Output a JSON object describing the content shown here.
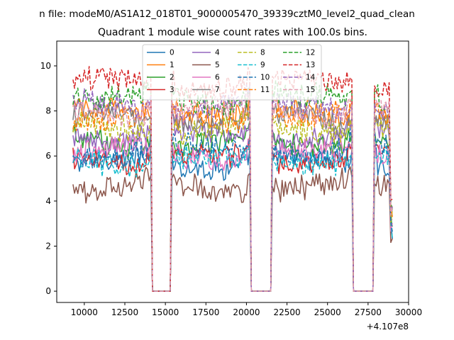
{
  "chart_data": {
    "type": "line",
    "suptitle": "n file: modeM0/AS1A12_018T01_9000005470_39339cztM0_level2_quad_clean",
    "title": "Quadrant 1 module wise count rates with 100.0s bins.",
    "xlabel": "",
    "ylabel": "",
    "x_offset_label": "+4.107e8",
    "xlim": [
      8300,
      30000
    ],
    "ylim": [
      -0.5,
      11.1
    ],
    "xticks": [
      10000,
      12500,
      15000,
      17500,
      20000,
      22500,
      25000,
      27500,
      30000
    ],
    "xtick_labels": [
      "10000",
      "12500",
      "15000",
      "17500",
      "20000",
      "22500",
      "25000",
      "27500",
      "30000"
    ],
    "yticks": [
      0,
      2,
      4,
      6,
      8,
      10
    ],
    "ytick_labels": [
      "0",
      "2",
      "4",
      "6",
      "8",
      "10"
    ],
    "x_start": 9300,
    "x_end": 29000,
    "bin": 100,
    "gaps": [
      [
        14200,
        15400
      ],
      [
        20300,
        21600
      ],
      [
        26600,
        27900
      ]
    ],
    "legend_position": "upper-center",
    "series": [
      {
        "name": "0",
        "color": "#1f77b4",
        "dash": "solid",
        "level": 5.7
      },
      {
        "name": "1",
        "color": "#ff7f0e",
        "dash": "solid",
        "level": 7.9
      },
      {
        "name": "2",
        "color": "#2ca02c",
        "dash": "solid",
        "level": 6.6
      },
      {
        "name": "3",
        "color": "#d62728",
        "dash": "solid",
        "level": 5.9
      },
      {
        "name": "4",
        "color": "#9467bd",
        "dash": "solid",
        "level": 6.9
      },
      {
        "name": "5",
        "color": "#8c564b",
        "dash": "solid",
        "level": 4.6
      },
      {
        "name": "6",
        "color": "#e377c2",
        "dash": "solid",
        "level": 6.1
      },
      {
        "name": "7",
        "color": "#7f7f7f",
        "dash": "solid",
        "level": 7.6
      },
      {
        "name": "8",
        "color": "#bcbd22",
        "dash": "dashed",
        "level": 7.2
      },
      {
        "name": "9",
        "color": "#17becf",
        "dash": "dashed",
        "level": 5.8
      },
      {
        "name": "10",
        "color": "#1f77b4",
        "dash": "dashed",
        "level": 6.2
      },
      {
        "name": "11",
        "color": "#ff7f0e",
        "dash": "dashed",
        "level": 7.7
      },
      {
        "name": "12",
        "color": "#2ca02c",
        "dash": "dashed",
        "level": 8.5
      },
      {
        "name": "13",
        "color": "#d62728",
        "dash": "dashed",
        "level": 9.2
      },
      {
        "name": "14",
        "color": "#9467bd",
        "dash": "dashed",
        "level": 8.2
      },
      {
        "name": "15",
        "color": "#e39bb0",
        "dash": "dashed",
        "level": 8.0
      }
    ]
  }
}
